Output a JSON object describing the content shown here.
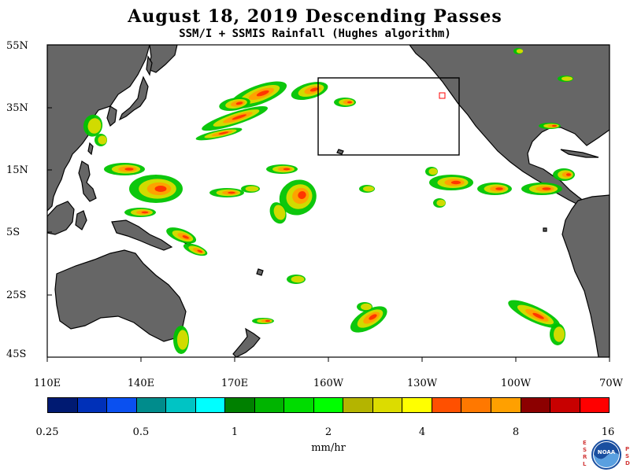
{
  "title": "August 18, 2019  Descending Passes",
  "subtitle": "SSM/I + SSMIS Rainfall (Hughes algorithm)",
  "lat_labels": [
    "55N",
    "35N",
    "15N",
    "5S",
    "25S",
    "45S"
  ],
  "lon_labels": [
    "110E",
    "140E",
    "170E",
    "160W",
    "130W",
    "100W",
    "70W"
  ],
  "colorbar": {
    "colors": [
      "#001a72",
      "#0030b8",
      "#0a50f0",
      "#008c8c",
      "#00c4c4",
      "#00ffff",
      "#008000",
      "#00b400",
      "#00dc00",
      "#00ff00",
      "#b4b400",
      "#dcdc00",
      "#ffff00",
      "#ff5000",
      "#ff7800",
      "#ffa000",
      "#8c0000",
      "#c80000",
      "#ff0000"
    ],
    "tick_labels": [
      "0.25",
      "0.5",
      "1",
      "2",
      "4",
      "8",
      "16"
    ],
    "units": "mm/hr"
  },
  "logo": {
    "letters_left": "ESRL",
    "letters_right": "PSD",
    "text": "NOAA"
  },
  "colors": {
    "land": "#666666",
    "ocean": "#ffffff",
    "box": "#000000",
    "marker": "#ff0000"
  }
}
